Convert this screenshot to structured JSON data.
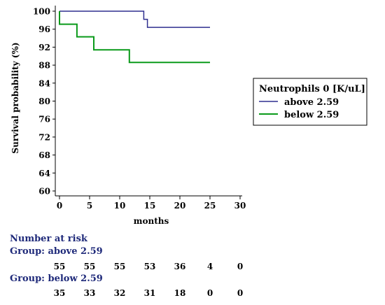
{
  "chart_data": {
    "type": "line",
    "step": true,
    "ylabel": "Survival probability (%)",
    "xlabel": "months",
    "xlim": [
      0,
      30
    ],
    "ylim": [
      60,
      100
    ],
    "xticks": [
      0,
      5,
      10,
      15,
      20,
      25,
      30
    ],
    "yticks": [
      60,
      64,
      68,
      72,
      76,
      80,
      84,
      88,
      92,
      96,
      100
    ],
    "legend": {
      "title": "Neutrophils 0 [K/uL]",
      "placement": "right"
    },
    "series": [
      {
        "name": "above 2.59",
        "color": "#2f2f8f",
        "x": [
          0,
          14.0,
          14.0,
          14.6,
          14.6,
          25
        ],
        "y": [
          100,
          100,
          98.2,
          98.2,
          96.4,
          96.4
        ]
      },
      {
        "name": "below 2.59",
        "color": "#0a9a1a",
        "x": [
          0,
          0,
          2.9,
          2.9,
          5.7,
          5.7,
          11.6,
          11.6,
          25
        ],
        "y": [
          100,
          97.1,
          97.1,
          94.3,
          94.3,
          91.4,
          91.4,
          88.6,
          88.6
        ]
      }
    ],
    "risk_table": {
      "title": "Number at risk",
      "times": [
        0,
        5,
        10,
        15,
        20,
        25,
        30
      ],
      "groups": [
        {
          "label": "Group: above 2.59",
          "values": [
            "55",
            "55",
            "55",
            "53",
            "36",
            "4",
            "0"
          ]
        },
        {
          "label": "Group: below 2.59",
          "values": [
            "35",
            "33",
            "32",
            "31",
            "18",
            "0",
            "0"
          ]
        }
      ]
    }
  }
}
